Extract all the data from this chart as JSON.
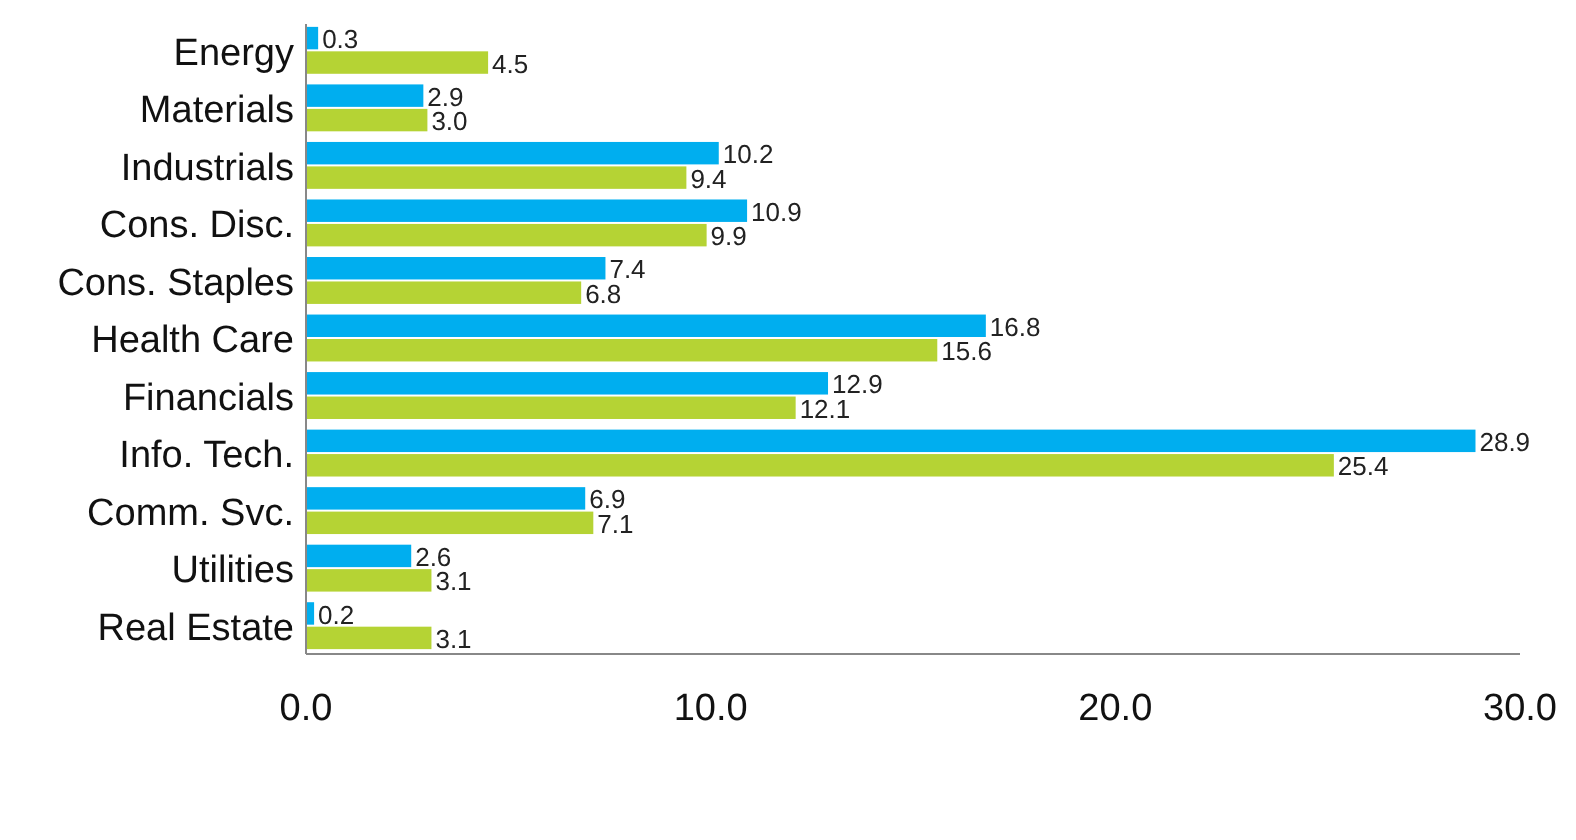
{
  "chart_data": {
    "type": "bar",
    "orientation": "horizontal",
    "categories": [
      "Energy",
      "Materials",
      "Industrials",
      "Cons. Disc.",
      "Cons. Staples",
      "Health Care",
      "Financials",
      "Info. Tech.",
      "Comm. Svc.",
      "Utilities",
      "Real Estate"
    ],
    "series": [
      {
        "color": "#00aeef",
        "values": [
          0.3,
          2.9,
          10.2,
          10.9,
          7.4,
          16.8,
          12.9,
          28.9,
          6.9,
          2.6,
          0.2
        ],
        "value_labels": [
          "0.3",
          "2.9",
          "10.2",
          "10.9",
          "7.4",
          "16.8",
          "12.9",
          "28.9",
          "6.9",
          "2.6",
          "0.2"
        ]
      },
      {
        "color": "#b5d334",
        "values": [
          4.5,
          3.0,
          9.4,
          9.9,
          6.8,
          15.6,
          12.1,
          25.4,
          7.1,
          3.1,
          3.1
        ],
        "value_labels": [
          "4.5",
          "3.0",
          "9.4",
          "9.9",
          "6.8",
          "15.6",
          "12.1",
          "25.4",
          "7.1",
          "3.1",
          "3.1"
        ]
      }
    ],
    "xlim": [
      0,
      30
    ],
    "xticks": [
      {
        "value": 0,
        "label": "0.0"
      },
      {
        "value": 10,
        "label": "10.0"
      },
      {
        "value": 20,
        "label": "20.0"
      },
      {
        "value": 30,
        "label": "30.0"
      }
    ]
  }
}
